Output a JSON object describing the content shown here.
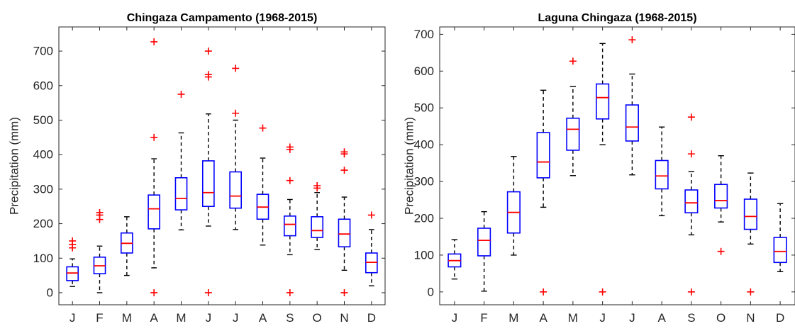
{
  "chart_data": [
    {
      "type": "box",
      "title": "Chingaza Campamento (1968-2015)",
      "ylabel": "Precipitation (mm)",
      "xlabel": "",
      "ylim": [
        -35,
        770
      ],
      "yticks": [
        0,
        100,
        200,
        300,
        400,
        500,
        600,
        700
      ],
      "grid": false,
      "colors": {
        "box": "#0000ff",
        "median": "#ff0000",
        "outlier": "#ff0000",
        "whisker": "#000000",
        "axis": "#262626"
      },
      "categories": [
        "J",
        "F",
        "M",
        "A",
        "M",
        "J",
        "J",
        "A",
        "S",
        "O",
        "N",
        "D"
      ],
      "boxes": [
        {
          "whisker_low": 18,
          "q1": 35,
          "median": 57,
          "q3": 75,
          "whisker_high": 98,
          "outliers": [
            130,
            140,
            150
          ]
        },
        {
          "whisker_low": 0,
          "q1": 55,
          "median": 78,
          "q3": 103,
          "whisker_high": 135,
          "outliers": [
            212,
            225,
            232
          ]
        },
        {
          "whisker_low": 50,
          "q1": 115,
          "median": 143,
          "q3": 173,
          "whisker_high": 220,
          "outliers": []
        },
        {
          "whisker_low": 72,
          "q1": 185,
          "median": 243,
          "q3": 283,
          "whisker_high": 388,
          "outliers": [
            0,
            450,
            727
          ]
        },
        {
          "whisker_low": 182,
          "q1": 240,
          "median": 273,
          "q3": 333,
          "whisker_high": 463,
          "outliers": [
            575
          ]
        },
        {
          "whisker_low": 193,
          "q1": 250,
          "median": 290,
          "q3": 382,
          "whisker_high": 518,
          "outliers": [
            0,
            625,
            632,
            700
          ]
        },
        {
          "whisker_low": 183,
          "q1": 245,
          "median": 280,
          "q3": 350,
          "whisker_high": 500,
          "outliers": [
            520,
            650
          ]
        },
        {
          "whisker_low": 138,
          "q1": 213,
          "median": 248,
          "q3": 285,
          "whisker_high": 390,
          "outliers": [
            477
          ]
        },
        {
          "whisker_low": 110,
          "q1": 165,
          "median": 198,
          "q3": 222,
          "whisker_high": 270,
          "outliers": [
            0,
            325,
            415,
            422
          ]
        },
        {
          "whisker_low": 125,
          "q1": 160,
          "median": 180,
          "q3": 220,
          "whisker_high": 290,
          "outliers": [
            303,
            310
          ]
        },
        {
          "whisker_low": 65,
          "q1": 133,
          "median": 170,
          "q3": 213,
          "whisker_high": 277,
          "outliers": [
            0,
            355,
            402,
            408
          ]
        },
        {
          "whisker_low": 20,
          "q1": 58,
          "median": 88,
          "q3": 115,
          "whisker_high": 183,
          "outliers": [
            225
          ]
        }
      ]
    },
    {
      "type": "box",
      "title": "Laguna Chingaza (1968-2015)",
      "ylabel": "Precipitation (mm)",
      "xlabel": "",
      "ylim": [
        -35,
        720
      ],
      "yticks": [
        0,
        100,
        200,
        300,
        400,
        500,
        600,
        700
      ],
      "grid": false,
      "colors": {
        "box": "#0000ff",
        "median": "#ff0000",
        "outlier": "#ff0000",
        "whisker": "#000000",
        "axis": "#262626"
      },
      "categories": [
        "J",
        "F",
        "M",
        "A",
        "M",
        "J",
        "J",
        "A",
        "S",
        "O",
        "N",
        "D"
      ],
      "boxes": [
        {
          "whisker_low": 35,
          "q1": 68,
          "median": 85,
          "q3": 103,
          "whisker_high": 142,
          "outliers": []
        },
        {
          "whisker_low": 2,
          "q1": 98,
          "median": 140,
          "q3": 173,
          "whisker_high": 218,
          "outliers": []
        },
        {
          "whisker_low": 100,
          "q1": 160,
          "median": 216,
          "q3": 272,
          "whisker_high": 368,
          "outliers": []
        },
        {
          "whisker_low": 230,
          "q1": 310,
          "median": 353,
          "q3": 433,
          "whisker_high": 548,
          "outliers": [
            0
          ]
        },
        {
          "whisker_low": 316,
          "q1": 385,
          "median": 442,
          "q3": 472,
          "whisker_high": 558,
          "outliers": [
            627
          ]
        },
        {
          "whisker_low": 400,
          "q1": 470,
          "median": 528,
          "q3": 565,
          "whisker_high": 675,
          "outliers": [
            0
          ]
        },
        {
          "whisker_low": 318,
          "q1": 410,
          "median": 448,
          "q3": 508,
          "whisker_high": 592,
          "outliers": [
            685
          ]
        },
        {
          "whisker_low": 207,
          "q1": 280,
          "median": 315,
          "q3": 357,
          "whisker_high": 448,
          "outliers": []
        },
        {
          "whisker_low": 155,
          "q1": 215,
          "median": 242,
          "q3": 277,
          "whisker_high": 327,
          "outliers": [
            0,
            375,
            475
          ]
        },
        {
          "whisker_low": 190,
          "q1": 228,
          "median": 248,
          "q3": 292,
          "whisker_high": 370,
          "outliers": [
            110
          ]
        },
        {
          "whisker_low": 130,
          "q1": 170,
          "median": 205,
          "q3": 252,
          "whisker_high": 323,
          "outliers": [
            0
          ]
        },
        {
          "whisker_low": 55,
          "q1": 80,
          "median": 110,
          "q3": 148,
          "whisker_high": 240,
          "outliers": []
        }
      ]
    }
  ]
}
